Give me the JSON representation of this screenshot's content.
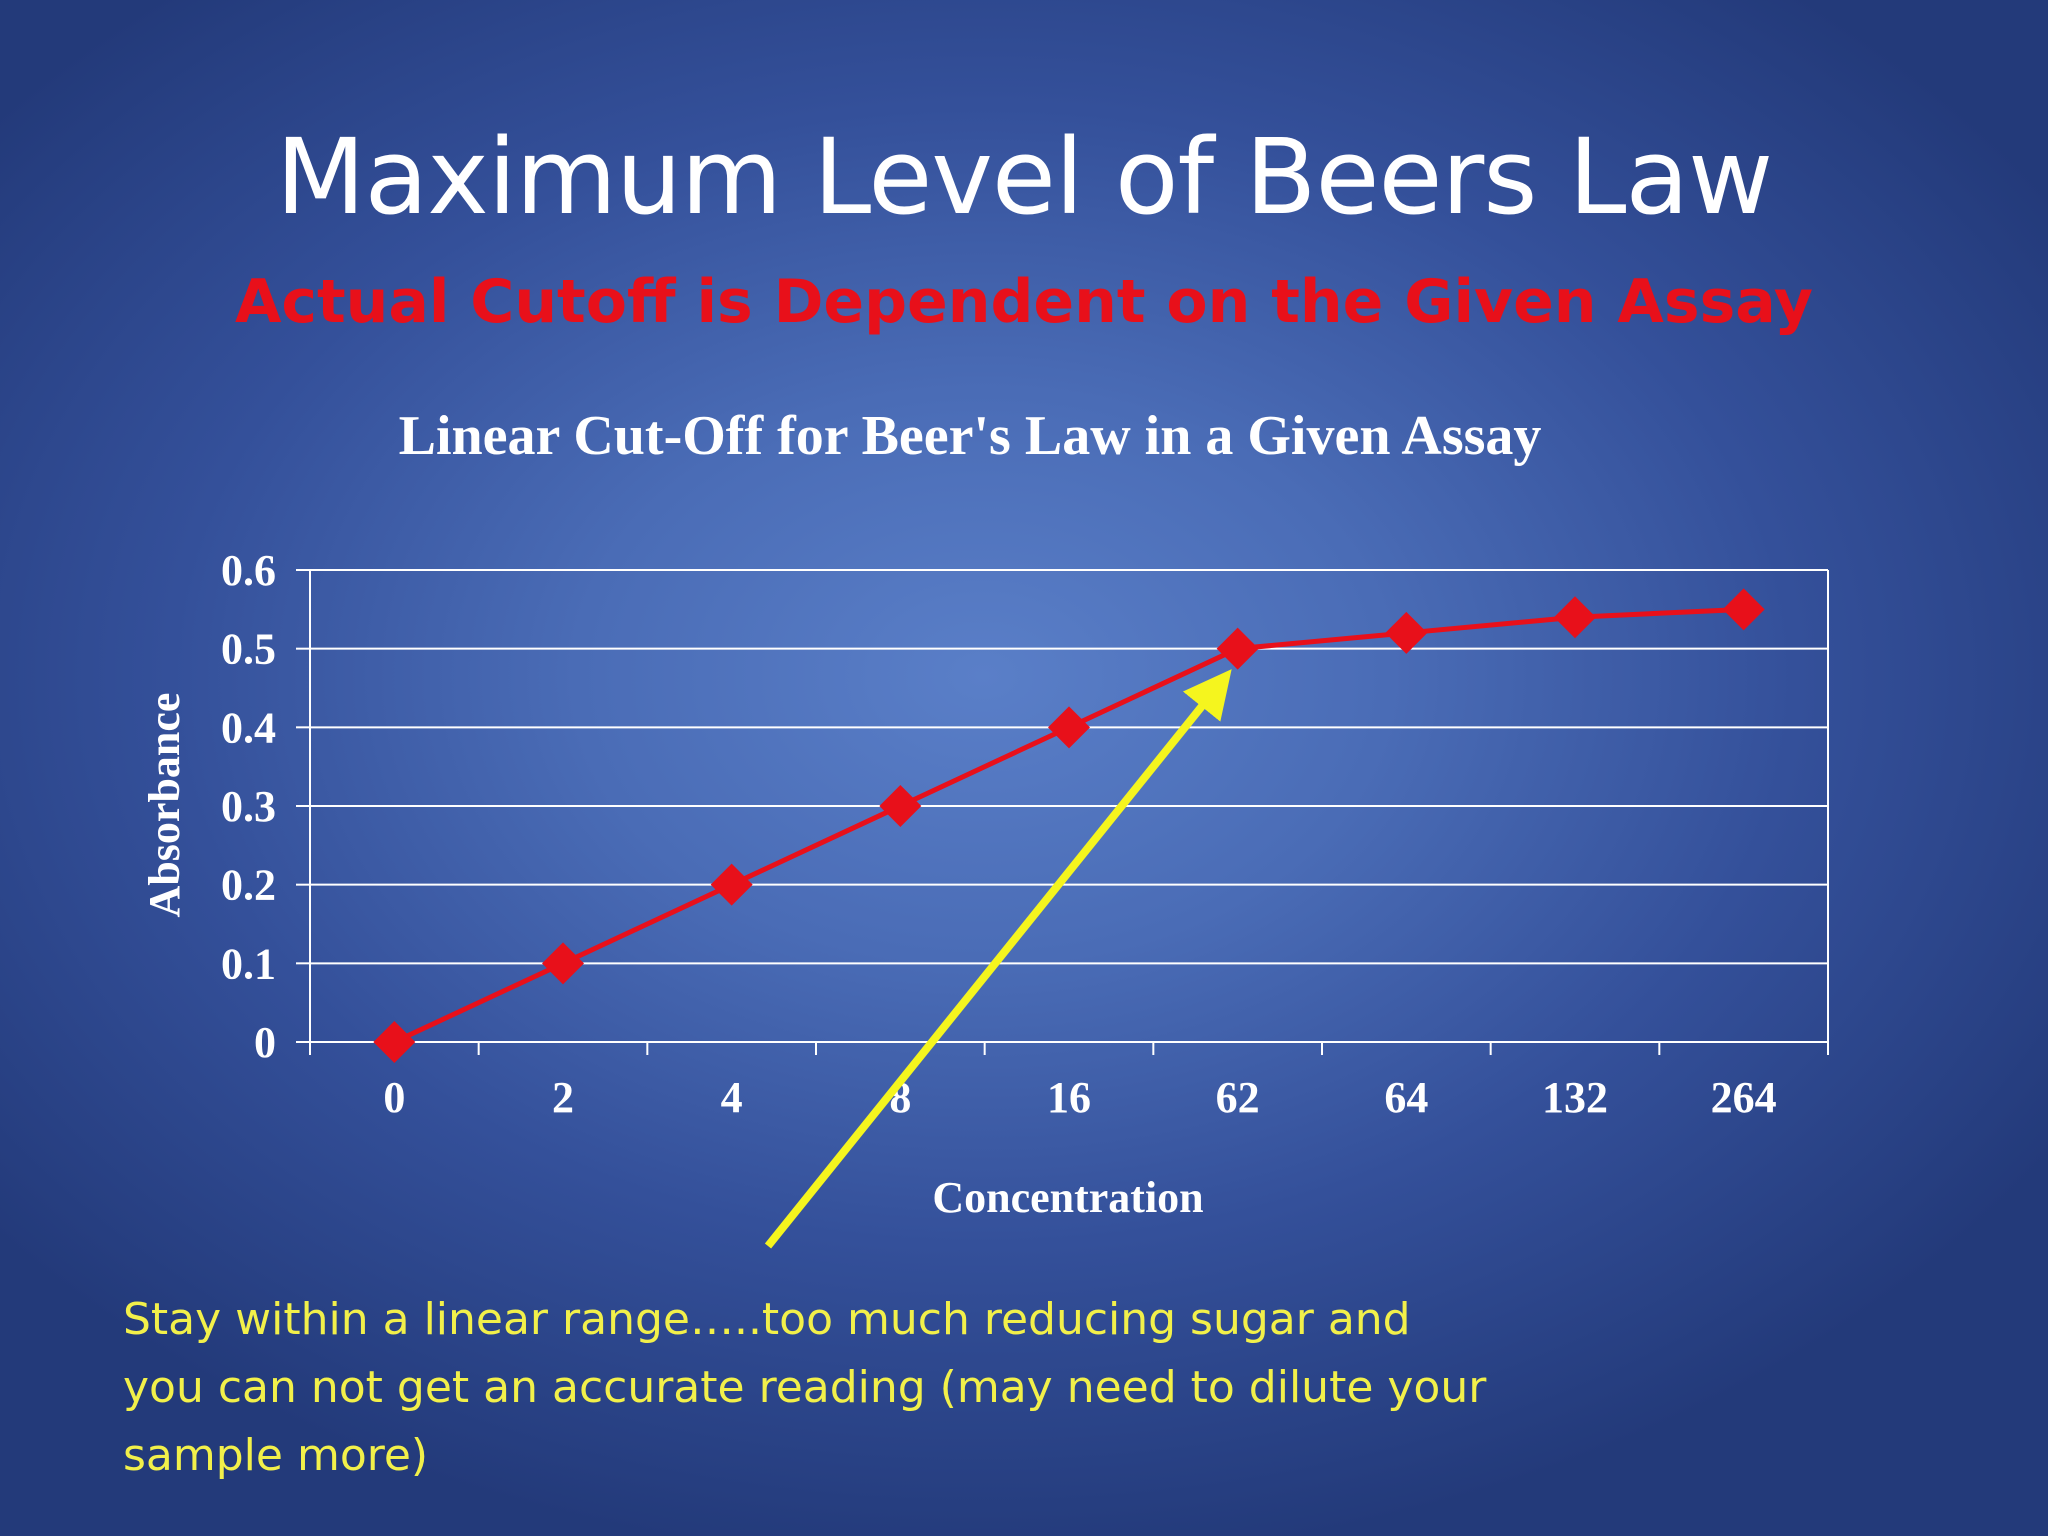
{
  "slide": {
    "title": "Maximum Level of Beers Law",
    "subtitle": "Actual Cutoff is Dependent on the Given Assay",
    "note": "Stay within a linear range…..too much reducing sugar and you can not get an accurate reading (may need to dilute your sample more)"
  },
  "colors": {
    "title": "#ffffff",
    "subtitle": "#e8101a",
    "series": "#e8101a",
    "arrow": "#f5f51e",
    "note": "#f2f04a",
    "gridlines": "#ffffff"
  },
  "annotation": {
    "type": "arrow",
    "icon": "arrow-icon",
    "points_to_category": "62",
    "points_to_value": 0.5
  },
  "chart_data": {
    "type": "line",
    "title": "Linear Cut-Off for Beer's Law in a Given Assay",
    "xlabel": "Concentration",
    "ylabel": "Absorbance",
    "categories": [
      "0",
      "2",
      "4",
      "8",
      "16",
      "62",
      "64",
      "132",
      "264"
    ],
    "series": [
      {
        "values": [
          0,
          0.1,
          0.2,
          0.3,
          0.4,
          0.5,
          0.52,
          0.54,
          0.55
        ]
      }
    ],
    "ylim": [
      0,
      0.6
    ],
    "yticks": [
      "0",
      "0.1",
      "0.2",
      "0.3",
      "0.4",
      "0.5",
      "0.6"
    ],
    "marker": "diamond",
    "grid": true,
    "legend": "none"
  }
}
